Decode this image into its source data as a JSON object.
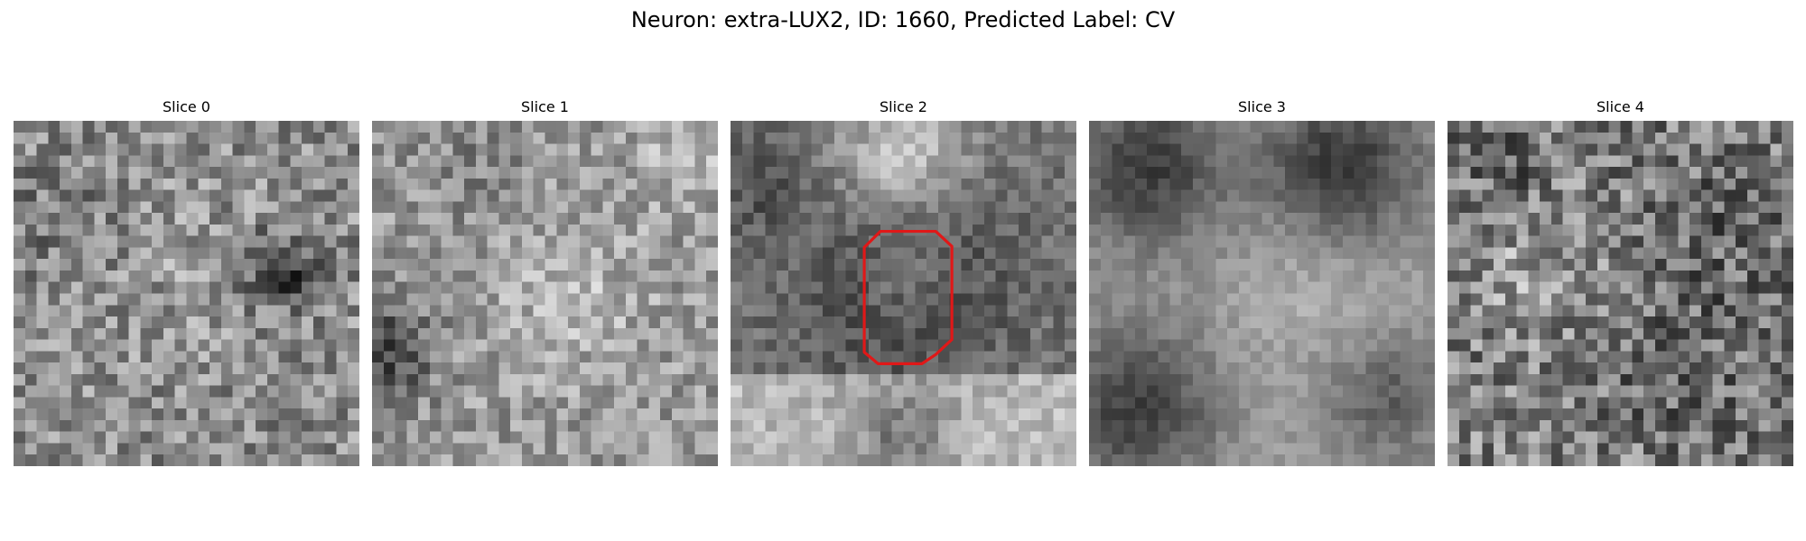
{
  "figure": {
    "title": "Neuron: extra-LUX2, ID: 1660, Predicted Label: CV"
  },
  "slices": [
    {
      "title": "Slice 0",
      "seed": 11
    },
    {
      "title": "Slice 1",
      "seed": 23
    },
    {
      "title": "Slice 2",
      "seed": 37
    },
    {
      "title": "Slice 3",
      "seed": 41
    },
    {
      "title": "Slice 4",
      "seed": 59
    }
  ],
  "grid_size": 30,
  "colors": {
    "background": "#ffffff",
    "text": "#000000",
    "outline": "#e01818"
  }
}
